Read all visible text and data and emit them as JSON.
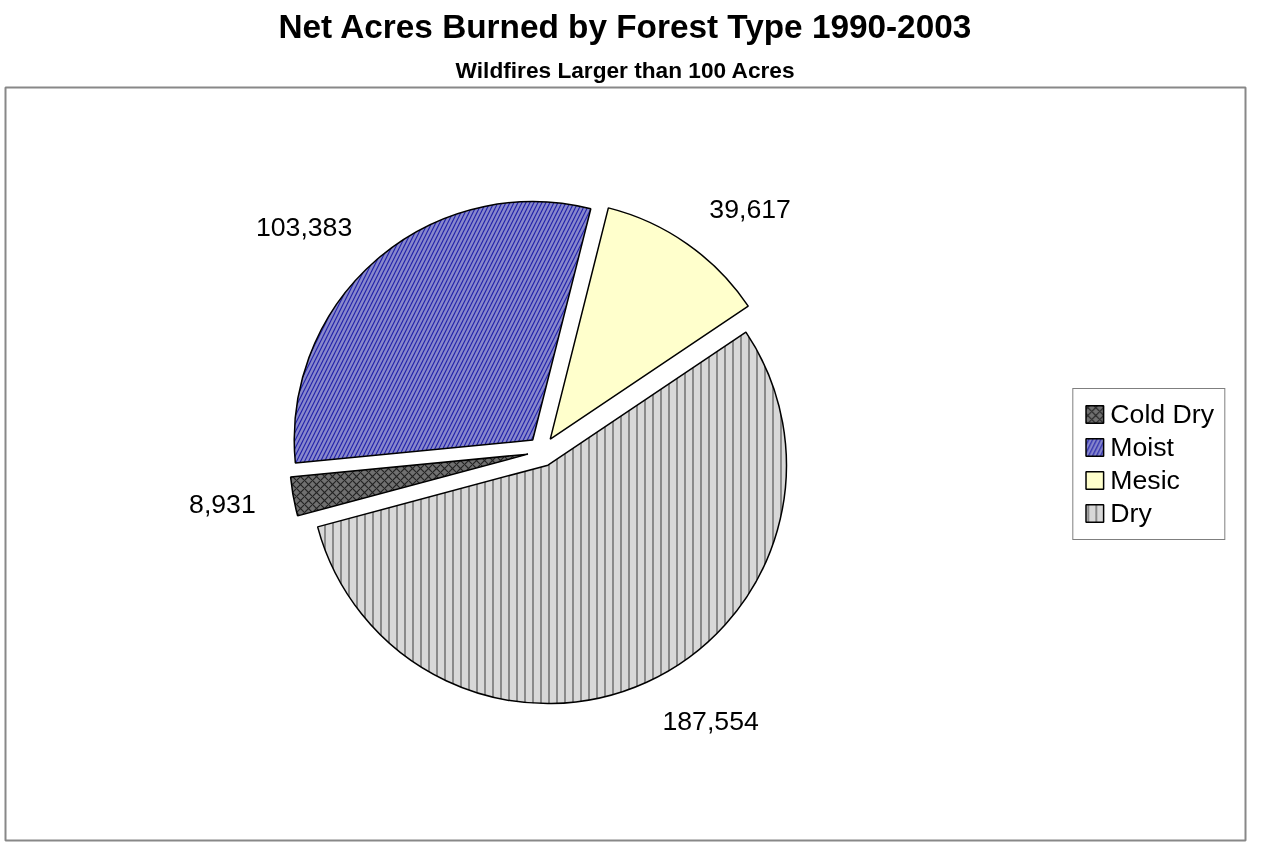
{
  "chart_data": {
    "type": "pie",
    "title": "Net Acres Burned by Forest Type 1990-2003",
    "subtitle": "Wildfires Larger than 100 Acres",
    "categories": [
      "Cold Dry",
      "Moist",
      "Mesic",
      "Dry"
    ],
    "values": [
      8931,
      103383,
      39617,
      187554
    ],
    "colors": [
      "#707070",
      "#8888cc",
      "#ffffcc",
      "#d8d8d8"
    ],
    "value_labels": [
      "8,931",
      "103,383",
      "39,617",
      "187,554"
    ],
    "legend": "right"
  }
}
